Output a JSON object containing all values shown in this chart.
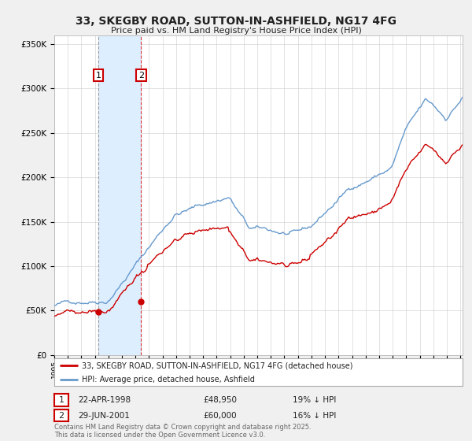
{
  "title": "33, SKEGBY ROAD, SUTTON-IN-ASHFIELD, NG17 4FG",
  "subtitle": "Price paid vs. HM Land Registry's House Price Index (HPI)",
  "legend_line1": "33, SKEGBY ROAD, SUTTON-IN-ASHFIELD, NG17 4FG (detached house)",
  "legend_line2": "HPI: Average price, detached house, Ashfield",
  "purchase1_date": "22-APR-1998",
  "purchase1_price": 48950,
  "purchase1_hpi": "19% ↓ HPI",
  "purchase2_date": "29-JUN-2001",
  "purchase2_price": 60000,
  "purchase2_hpi": "16% ↓ HPI",
  "ylabel_ticks": [
    "£0",
    "£50K",
    "£100K",
    "£150K",
    "£200K",
    "£250K",
    "£300K",
    "£350K"
  ],
  "ytick_vals": [
    0,
    50000,
    100000,
    150000,
    200000,
    250000,
    300000,
    350000
  ],
  "ylim": [
    0,
    360000
  ],
  "hpi_color": "#6699cc",
  "price_color": "#cc0000",
  "vline1_color": "#999999",
  "vline2_color": "#dd3333",
  "shade_color": "#ddeeff",
  "dot_color": "#cc0000",
  "copyright_text": "Contains HM Land Registry data © Crown copyright and database right 2025.\nThis data is licensed under the Open Government Licence v3.0.",
  "background_color": "#f0f0f0",
  "plot_bg_color": "#ffffff",
  "grid_color": "#cccccc"
}
